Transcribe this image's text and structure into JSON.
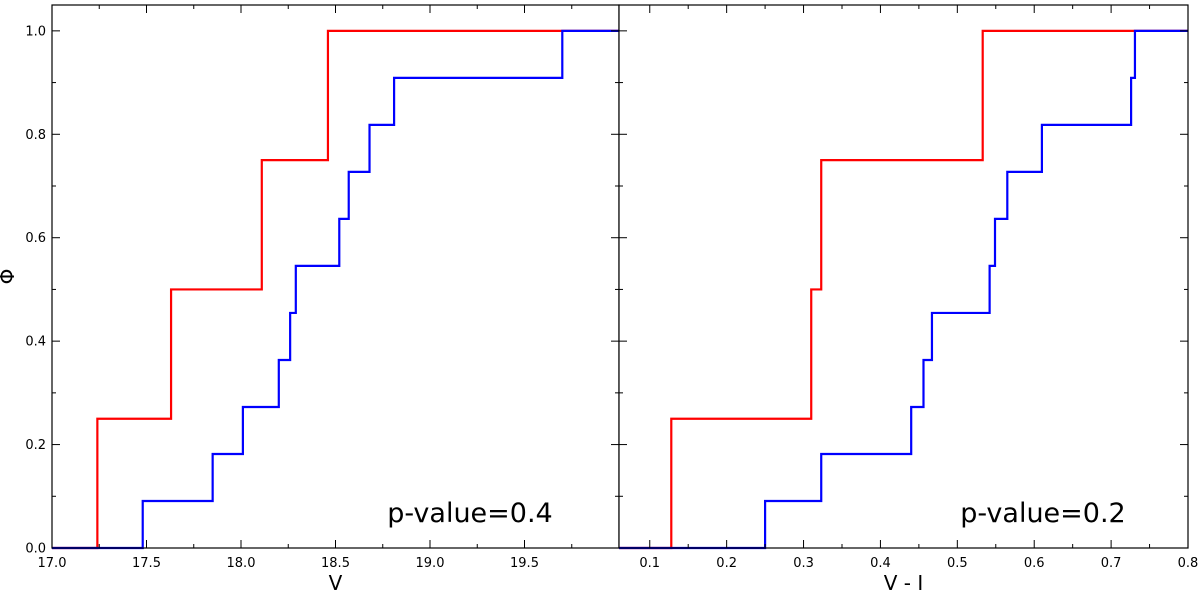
{
  "chart_data": [
    {
      "type": "line",
      "step": "post",
      "xlabel": "V",
      "ylabel": "Φ",
      "xlim": [
        17.0,
        20.0
      ],
      "ylim": [
        0.0,
        1.05
      ],
      "xticks": [
        17.0,
        17.5,
        18.0,
        18.5,
        19.0,
        19.5
      ],
      "xtick_labels": [
        "17.0",
        "17.5",
        "18.0",
        "18.5",
        "19.0",
        "19.5"
      ],
      "yticks": [
        0.0,
        0.2,
        0.4,
        0.6,
        0.8,
        1.0
      ],
      "ytick_labels": [
        "0.0",
        "0.2",
        "0.4",
        "0.6",
        "0.8",
        "1.0"
      ],
      "grid": false,
      "annotation": "p-value=0.4",
      "series": [
        {
          "color": "#ff0000",
          "x": [
            17.0,
            17.24,
            17.63,
            18.11,
            18.46,
            20.0
          ],
          "y": [
            0.0,
            0.25,
            0.5,
            0.75,
            1.0,
            1.0
          ]
        },
        {
          "color": "#0000ff",
          "x": [
            17.0,
            17.48,
            17.85,
            18.01,
            18.2,
            18.26,
            18.29,
            18.52,
            18.57,
            18.68,
            18.81,
            19.7,
            20.0
          ],
          "y": [
            0.0,
            0.0909,
            0.1818,
            0.2727,
            0.3636,
            0.4545,
            0.5455,
            0.6364,
            0.7273,
            0.8182,
            0.9091,
            1.0,
            1.0
          ]
        }
      ]
    },
    {
      "type": "line",
      "step": "post",
      "xlabel": "V - I",
      "ylabel": "",
      "xlim": [
        0.06,
        0.8
      ],
      "ylim": [
        0.0,
        1.05
      ],
      "xticks": [
        0.1,
        0.2,
        0.3,
        0.4,
        0.5,
        0.6,
        0.7,
        0.8
      ],
      "xtick_labels": [
        "0.1",
        "0.2",
        "0.3",
        "0.4",
        "0.5",
        "0.6",
        "0.7",
        "0.8"
      ],
      "yticks": [
        0.0,
        0.2,
        0.4,
        0.6,
        0.8,
        1.0
      ],
      "ytick_labels": [],
      "grid": false,
      "annotation": "p-value=0.2",
      "series": [
        {
          "color": "#ff0000",
          "x": [
            0.06,
            0.128,
            0.31,
            0.323,
            0.533,
            0.8
          ],
          "y": [
            0.0,
            0.25,
            0.5,
            0.75,
            1.0,
            1.0
          ]
        },
        {
          "color": "#0000ff",
          "x": [
            0.06,
            0.25,
            0.323,
            0.44,
            0.456,
            0.467,
            0.542,
            0.549,
            0.565,
            0.61,
            0.726,
            0.731,
            0.8
          ],
          "y": [
            0.0,
            0.0909,
            0.1818,
            0.2727,
            0.3636,
            0.4545,
            0.5455,
            0.6364,
            0.7273,
            0.8182,
            0.9091,
            1.0,
            1.0
          ]
        }
      ]
    }
  ]
}
